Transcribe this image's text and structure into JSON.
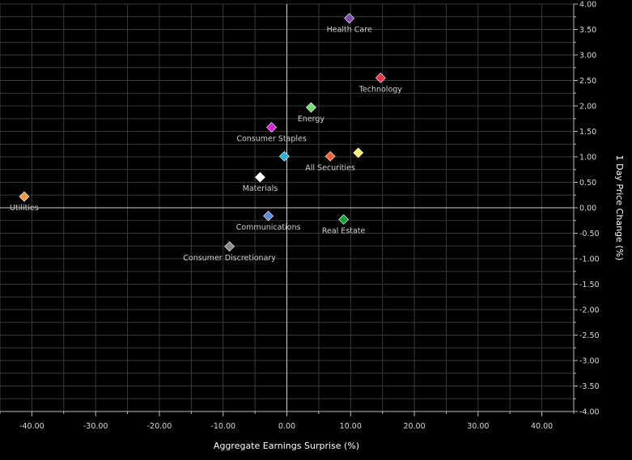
{
  "chart_data": {
    "type": "scatter",
    "title": "",
    "xlabel": "Aggregate Earnings Surprise (%)",
    "ylabel": "1 Day Price Change (%)",
    "xlim": [
      -45,
      45
    ],
    "ylim": [
      -4,
      4
    ],
    "grid": true,
    "legend": "none",
    "x_ticks": [
      -40,
      -30,
      -20,
      -10,
      0,
      10,
      20,
      30,
      40
    ],
    "x_tick_labels": [
      "-40.00",
      "-30.00",
      "-20.00",
      "-10.00",
      "0.00",
      "10.00",
      "20.00",
      "30.00",
      "40.00"
    ],
    "y_ticks": [
      4,
      3.5,
      3,
      2.5,
      2,
      1.5,
      1,
      0.5,
      0,
      -0.5,
      -1,
      -1.5,
      -2,
      -2.5,
      -3,
      -3.5,
      -4
    ],
    "y_tick_labels": [
      "4.00",
      "3.50",
      "3.00",
      "2.50",
      "2.00",
      "1.50",
      "1.00",
      "0.50",
      "0.00",
      "-0.50",
      "-1.00",
      "-1.50",
      "-2.00",
      "-2.50",
      "-3.00",
      "-3.50",
      "-4.00"
    ],
    "points": [
      {
        "label": "Health Care",
        "x": 9.8,
        "y": 3.72,
        "color": "#7b4fa8",
        "label_pos": "below"
      },
      {
        "label": "Technology",
        "x": 14.7,
        "y": 2.55,
        "color": "#e8334a",
        "label_pos": "below"
      },
      {
        "label": "Energy",
        "x": 3.8,
        "y": 1.97,
        "color": "#6fe06f",
        "label_pos": "below"
      },
      {
        "label": "Consumer Staples",
        "x": -2.4,
        "y": 1.58,
        "color": "#e01ee0",
        "label_pos": "below"
      },
      {
        "label": "",
        "x": -0.4,
        "y": 1.01,
        "color": "#1fb8d8"
      },
      {
        "label": "All Securities",
        "x": 6.8,
        "y": 1.01,
        "color": "#f06433",
        "label_pos": "below"
      },
      {
        "label": "",
        "x": 11.2,
        "y": 1.08,
        "color": "#f6f07a"
      },
      {
        "label": "Materials",
        "x": -4.2,
        "y": 0.6,
        "color": "#ffffff",
        "label_pos": "below"
      },
      {
        "label": "Utilities",
        "x": -41.2,
        "y": 0.22,
        "color": "#f39b3a",
        "label_pos": "below"
      },
      {
        "label": "Communications",
        "x": -2.9,
        "y": -0.16,
        "color": "#5a8ed8",
        "label_pos": "below"
      },
      {
        "label": "Real Estate",
        "x": 8.9,
        "y": -0.23,
        "color": "#1a9e3a",
        "label_pos": "below"
      },
      {
        "label": "Consumer Discretionary",
        "x": -9.0,
        "y": -0.76,
        "color": "#8a8a8a",
        "label_pos": "below"
      }
    ]
  }
}
